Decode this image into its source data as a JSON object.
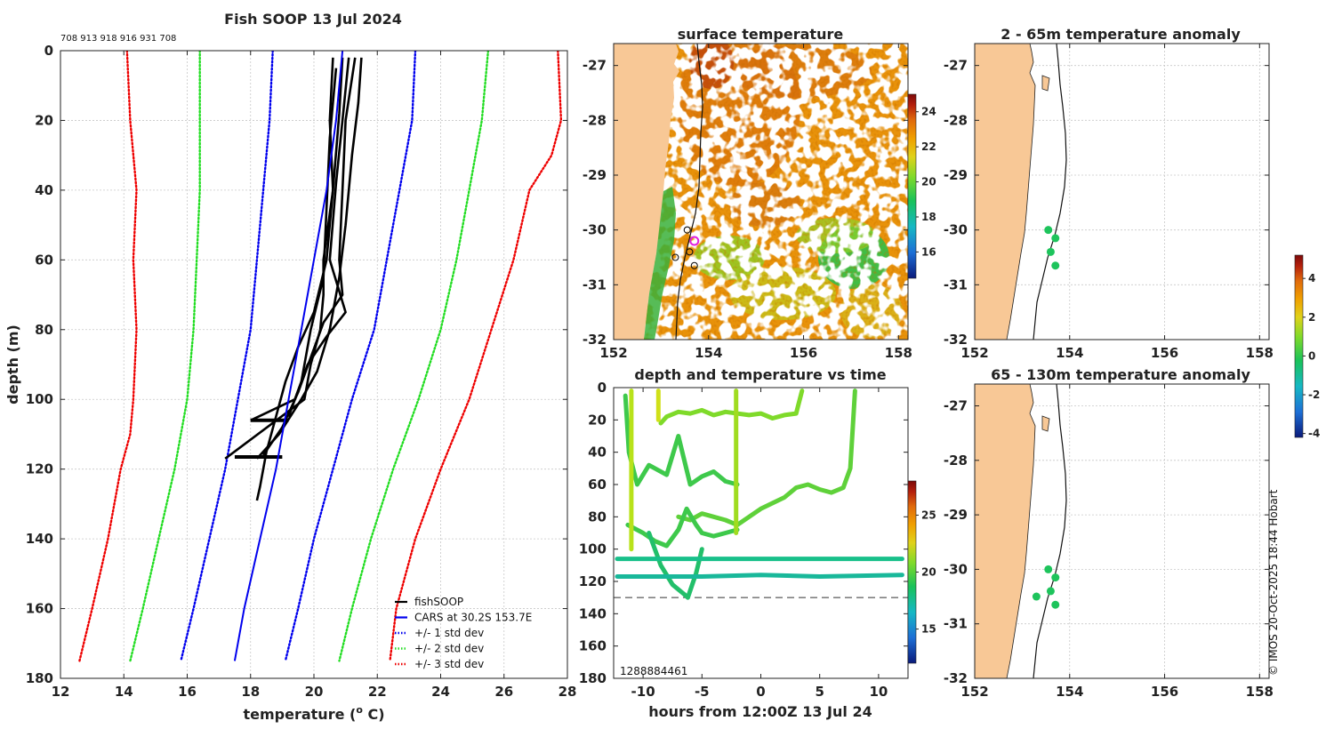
{
  "figure": {
    "copyright": "© IMOS 20-Oct-2025 18:44 Hobart",
    "colors": {
      "land": "#f8c896",
      "sst_palette": [
        "#0a1a7a",
        "#1d6fd6",
        "#16b8c4",
        "#19c25a",
        "#7fda2a",
        "#e0d21a",
        "#f0a000",
        "#e06a0c",
        "#b5200c",
        "#7c0a0a"
      ]
    }
  },
  "chart_data": [
    {
      "id": "profile",
      "type": "line",
      "title": "Fish SOOP 13 Jul 2024",
      "subtitle": "708 913 918 916 931 708",
      "xlabel": "temperature (° C)",
      "xlabel_parts": {
        "prefix": "temperature (",
        "sup": "o",
        "suffix": " C)"
      },
      "ylabel": "depth (m)",
      "xlim": [
        12,
        28
      ],
      "ylim": [
        180,
        0
      ],
      "xticks": [
        12,
        14,
        16,
        18,
        20,
        22,
        24,
        26,
        28
      ],
      "yticks": [
        0,
        20,
        40,
        60,
        80,
        100,
        120,
        140,
        160,
        180
      ],
      "grid": true,
      "legend_position": "bottom-right",
      "legend": [
        {
          "label": "fishSOOP",
          "color": "#000000",
          "style": "solid"
        },
        {
          "label": "CARS at 30.2S 153.7E",
          "color": "#0000ee",
          "style": "solid"
        },
        {
          "label": "+/- 1 std dev",
          "color": "#0000ee",
          "style": "dotted"
        },
        {
          "label": "+/- 2 std dev",
          "color": "#22dd22",
          "style": "dotted"
        },
        {
          "label": "+/- 3 std dev",
          "color": "#ee0000",
          "style": "dotted"
        }
      ],
      "cars_mean": {
        "depth": [
          0,
          20,
          40,
          60,
          80,
          100,
          120,
          140,
          160,
          175
        ],
        "temp": [
          20.9,
          20.7,
          20.4,
          20.0,
          19.6,
          19.2,
          18.8,
          18.3,
          17.8,
          17.5
        ]
      },
      "std_lines": [
        {
          "name": "-3",
          "color": "#ee0000",
          "depth": [
            0,
            20,
            40,
            60,
            80,
            100,
            110,
            120,
            140,
            160,
            175
          ],
          "temp": [
            14.1,
            14.2,
            14.4,
            14.3,
            14.4,
            14.3,
            14.2,
            13.9,
            13.5,
            13.0,
            12.6
          ]
        },
        {
          "name": "-2",
          "color": "#22dd22",
          "depth": [
            0,
            20,
            40,
            60,
            80,
            100,
            120,
            140,
            160,
            175
          ],
          "temp": [
            16.4,
            16.4,
            16.4,
            16.3,
            16.2,
            16.0,
            15.6,
            15.1,
            14.6,
            14.2
          ]
        },
        {
          "name": "-1",
          "color": "#0000ee",
          "depth": [
            0,
            20,
            40,
            60,
            80,
            100,
            120,
            140,
            160,
            175
          ],
          "temp": [
            18.7,
            18.6,
            18.4,
            18.2,
            18.0,
            17.6,
            17.2,
            16.7,
            16.2,
            15.8
          ]
        },
        {
          "name": "+1",
          "color": "#0000ee",
          "depth": [
            0,
            20,
            40,
            60,
            80,
            100,
            120,
            140,
            160,
            175
          ],
          "temp": [
            23.2,
            23.1,
            22.7,
            22.3,
            21.9,
            21.2,
            20.6,
            20.0,
            19.5,
            19.1
          ]
        },
        {
          "name": "+2",
          "color": "#22dd22",
          "depth": [
            0,
            20,
            40,
            60,
            80,
            100,
            120,
            140,
            160,
            175
          ],
          "temp": [
            25.5,
            25.3,
            24.9,
            24.5,
            24.0,
            23.3,
            22.5,
            21.8,
            21.2,
            20.8
          ]
        },
        {
          "name": "+3",
          "color": "#ee0000",
          "depth": [
            0,
            20,
            30,
            40,
            60,
            80,
            100,
            120,
            140,
            160,
            175
          ],
          "temp": [
            27.7,
            27.8,
            27.5,
            26.8,
            26.3,
            25.6,
            24.9,
            24.0,
            23.2,
            22.6,
            22.4
          ]
        }
      ],
      "fishsoop_casts": [
        {
          "depth": [
            2,
            18,
            40,
            60,
            75,
            85,
            95,
            105,
            115,
            125,
            129
          ],
          "temp": [
            20.9,
            20.8,
            20.6,
            20.4,
            20.0,
            19.5,
            19.1,
            18.8,
            18.5,
            18.3,
            18.2
          ]
        },
        {
          "depth": [
            2,
            15,
            30,
            50,
            65,
            80,
            92,
            100,
            110,
            117
          ],
          "temp": [
            21.5,
            21.4,
            21.2,
            21.0,
            20.8,
            20.5,
            20.1,
            19.6,
            18.9,
            18.2
          ]
        },
        {
          "depth": [
            2,
            20,
            40,
            60,
            70,
            78,
            88,
            98,
            108,
            116
          ],
          "temp": [
            21.3,
            21.0,
            20.9,
            20.8,
            20.9,
            20.3,
            19.9,
            19.5,
            19.0,
            18.4
          ]
        },
        {
          "depth": [
            2,
            20,
            38,
            60,
            75,
            82,
            90,
            100,
            106
          ],
          "temp": [
            21.1,
            20.9,
            20.7,
            20.5,
            21.0,
            20.4,
            19.8,
            19.4,
            18.0
          ]
        },
        {
          "depth": [
            5,
            25,
            45,
            65,
            80,
            95,
            105
          ],
          "temp": [
            20.7,
            20.5,
            20.4,
            20.3,
            19.9,
            19.6,
            19.2
          ]
        },
        {
          "depth": [
            2,
            20,
            40,
            60,
            70,
            80,
            90,
            100,
            117
          ],
          "temp": [
            20.6,
            20.5,
            20.6,
            20.3,
            20.3,
            20.2,
            19.9,
            19.7,
            17.2
          ]
        }
      ]
    },
    {
      "id": "sst",
      "type": "heatmap",
      "title": "surface temperature",
      "xlim": [
        152,
        158.2
      ],
      "ylim": [
        -32,
        -26.6
      ],
      "xticks": [
        152,
        154,
        156,
        158
      ],
      "yticks": [
        -27,
        -28,
        -29,
        -30,
        -31,
        -32
      ],
      "colorbar": {
        "range": [
          14.5,
          25
        ],
        "ticks": [
          16,
          18,
          20,
          22,
          24
        ]
      },
      "stations": [
        {
          "lon": 153.55,
          "lat": -30.0
        },
        {
          "lon": 153.6,
          "lat": -30.4
        },
        {
          "lon": 153.3,
          "lat": -30.5
        },
        {
          "lon": 153.7,
          "lat": -30.65
        },
        {
          "lon": 153.7,
          "lat": -30.2,
          "highlight": true
        }
      ]
    },
    {
      "id": "depth_time",
      "type": "scatter",
      "title": "depth and temperature vs time",
      "xlabel": "hours from 12:00Z 13 Jul 24",
      "ylabel": "",
      "xlim": [
        -12.5,
        12.5
      ],
      "ylim": [
        180,
        0
      ],
      "xticks": [
        -10,
        -5,
        0,
        5,
        10
      ],
      "yticks": [
        0,
        20,
        40,
        60,
        80,
        100,
        120,
        140,
        160,
        180
      ],
      "reference_depth": 130,
      "corner_text": "1288884461",
      "colorbar": {
        "range": [
          12,
          28
        ],
        "ticks": [
          15,
          20,
          25
        ]
      },
      "tracks": [
        {
          "color": "#7fda2a",
          "t": [
            -8.5,
            -8.0,
            -7.0,
            -6.0,
            -5.0,
            -4.0,
            -3.0,
            -1.0,
            0.0,
            1.0,
            2.0,
            3.0,
            3.5
          ],
          "d": [
            22,
            18,
            15,
            16,
            14,
            17,
            15,
            17,
            16,
            19,
            17,
            16,
            2
          ]
        },
        {
          "color": "#3ec94b",
          "t": [
            -11.5,
            -11.2,
            -10.5,
            -9.5,
            -8.0,
            -7.0,
            -6.0,
            -5.0,
            -4.0,
            -3.0,
            -2.0
          ],
          "d": [
            5,
            40,
            60,
            48,
            54,
            30,
            60,
            55,
            52,
            58,
            60
          ]
        },
        {
          "color": "#5fd13a",
          "t": [
            -7.0,
            -6.0,
            -5.0,
            -4.0,
            -3.0,
            -2.0,
            0.0,
            2.0,
            3.0,
            4.0,
            5.0,
            6.0,
            7.0,
            7.6,
            8.0
          ],
          "d": [
            80,
            82,
            78,
            80,
            82,
            85,
            75,
            68,
            62,
            60,
            63,
            65,
            62,
            50,
            2
          ]
        },
        {
          "color": "#3ec94b",
          "t": [
            -11.3,
            -10.0,
            -9.0,
            -8.0,
            -7.0,
            -6.3,
            -5.5,
            -5.0,
            -4.0,
            -3.0,
            -2.0
          ],
          "d": [
            85,
            90,
            95,
            98,
            88,
            75,
            85,
            90,
            92,
            90,
            88
          ]
        },
        {
          "color": "#22bf6a",
          "t": [
            -9.5,
            -8.5,
            -7.5,
            -6.5,
            -6.2,
            -5.5,
            -5.0
          ],
          "d": [
            90,
            110,
            122,
            128,
            130,
            115,
            100
          ]
        },
        {
          "color": "#18c08a",
          "t": [
            -12.2,
            -5.0,
            0.0,
            5.0,
            12.0
          ],
          "d": [
            106,
            106,
            106,
            106,
            106
          ]
        },
        {
          "color": "#19b89a",
          "t": [
            -12.2,
            -5.0,
            0.0,
            5.0,
            12.0
          ],
          "d": [
            117,
            117,
            116,
            117,
            116
          ]
        },
        {
          "color": "#b8e21a",
          "t": [
            -11.0,
            -11.0
          ],
          "d": [
            2,
            100
          ]
        },
        {
          "color": "#d0e018",
          "t": [
            -8.7,
            -8.7
          ],
          "d": [
            2,
            20
          ]
        },
        {
          "color": "#a0dc20",
          "t": [
            -2.1,
            -2.1
          ],
          "d": [
            2,
            90
          ]
        }
      ]
    },
    {
      "id": "anom_shallow",
      "type": "scatter",
      "title": "2 - 65m temperature anomaly",
      "xlim": [
        152,
        158.2
      ],
      "ylim": [
        -32,
        -26.6
      ],
      "xticks": [
        152,
        154,
        156,
        158
      ],
      "yticks": [
        -27,
        -28,
        -29,
        -30,
        -31,
        -32
      ],
      "points": [
        {
          "lon": 153.55,
          "lat": -30.0,
          "value": 0.6
        },
        {
          "lon": 153.7,
          "lat": -30.15,
          "value": 0.5
        },
        {
          "lon": 153.6,
          "lat": -30.4,
          "value": 0.5
        },
        {
          "lon": 153.7,
          "lat": -30.65,
          "value": 0.6
        }
      ]
    },
    {
      "id": "anom_deep",
      "type": "scatter",
      "title": "65 - 130m temperature anomaly",
      "xlim": [
        152,
        158.2
      ],
      "ylim": [
        -32,
        -26.6
      ],
      "xticks": [
        152,
        154,
        156,
        158
      ],
      "yticks": [
        -27,
        -28,
        -29,
        -30,
        -31,
        -32
      ],
      "points": [
        {
          "lon": 153.55,
          "lat": -30.0,
          "value": 0.4
        },
        {
          "lon": 153.7,
          "lat": -30.15,
          "value": 0.5
        },
        {
          "lon": 153.6,
          "lat": -30.4,
          "value": 0.5
        },
        {
          "lon": 153.3,
          "lat": -30.5,
          "value": 0.4
        },
        {
          "lon": 153.7,
          "lat": -30.65,
          "value": 0.6
        }
      ],
      "colorbar": {
        "range": [
          -4.2,
          5.2
        ],
        "ticks": [
          4,
          2,
          0,
          -2,
          -4
        ]
      }
    }
  ]
}
